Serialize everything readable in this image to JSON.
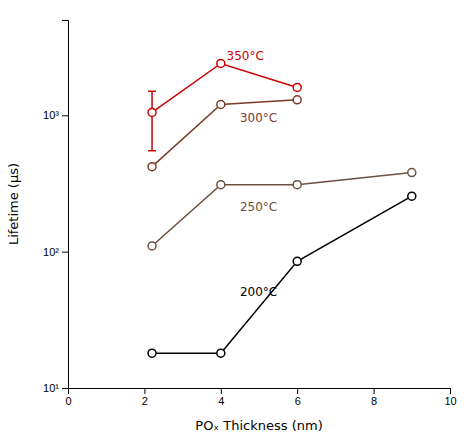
{
  "chart_data": {
    "type": "line",
    "log": "y",
    "marker": "circle",
    "xlabel": "POₓ Thickness (nm)",
    "ylabel": "Lifetime (μs)",
    "xlim": [
      0,
      10
    ],
    "ylim": [
      10,
      5000
    ],
    "xticks": [
      0,
      2,
      4,
      6,
      8,
      10
    ],
    "yticks": [
      {
        "value": 10,
        "label": "10¹"
      },
      {
        "value": 100,
        "label": "10²"
      },
      {
        "value": 1000,
        "label": "10³"
      }
    ],
    "series": [
      {
        "name": "350°C",
        "color": "#cc0000",
        "x": [
          2.2,
          4.0,
          6.0
        ],
        "values": [
          1050,
          2400,
          1600
        ],
        "error_low": [
          550,
          null,
          null
        ],
        "error_high": [
          1500,
          null,
          null
        ],
        "label_x": 4.15,
        "label_y": 2700
      },
      {
        "name": "300°C",
        "color": "#7B3A2A",
        "x": [
          2.2,
          4.0,
          6.0
        ],
        "values": [
          420,
          1200,
          1300
        ],
        "label_x": 4.5,
        "label_y": 950
      },
      {
        "name": "250°C",
        "color": "#6B5040",
        "x": [
          2.2,
          4.0,
          6.0,
          9.0
        ],
        "values": [
          110,
          310,
          310,
          380
        ],
        "label_x": 4.5,
        "label_y": 210
      },
      {
        "name": "200°C",
        "color": "#000000",
        "x": [
          2.2,
          4.0,
          6.0,
          9.0
        ],
        "values": [
          18,
          18,
          85,
          255
        ],
        "label_x": 4.5,
        "label_y": 50
      }
    ]
  }
}
